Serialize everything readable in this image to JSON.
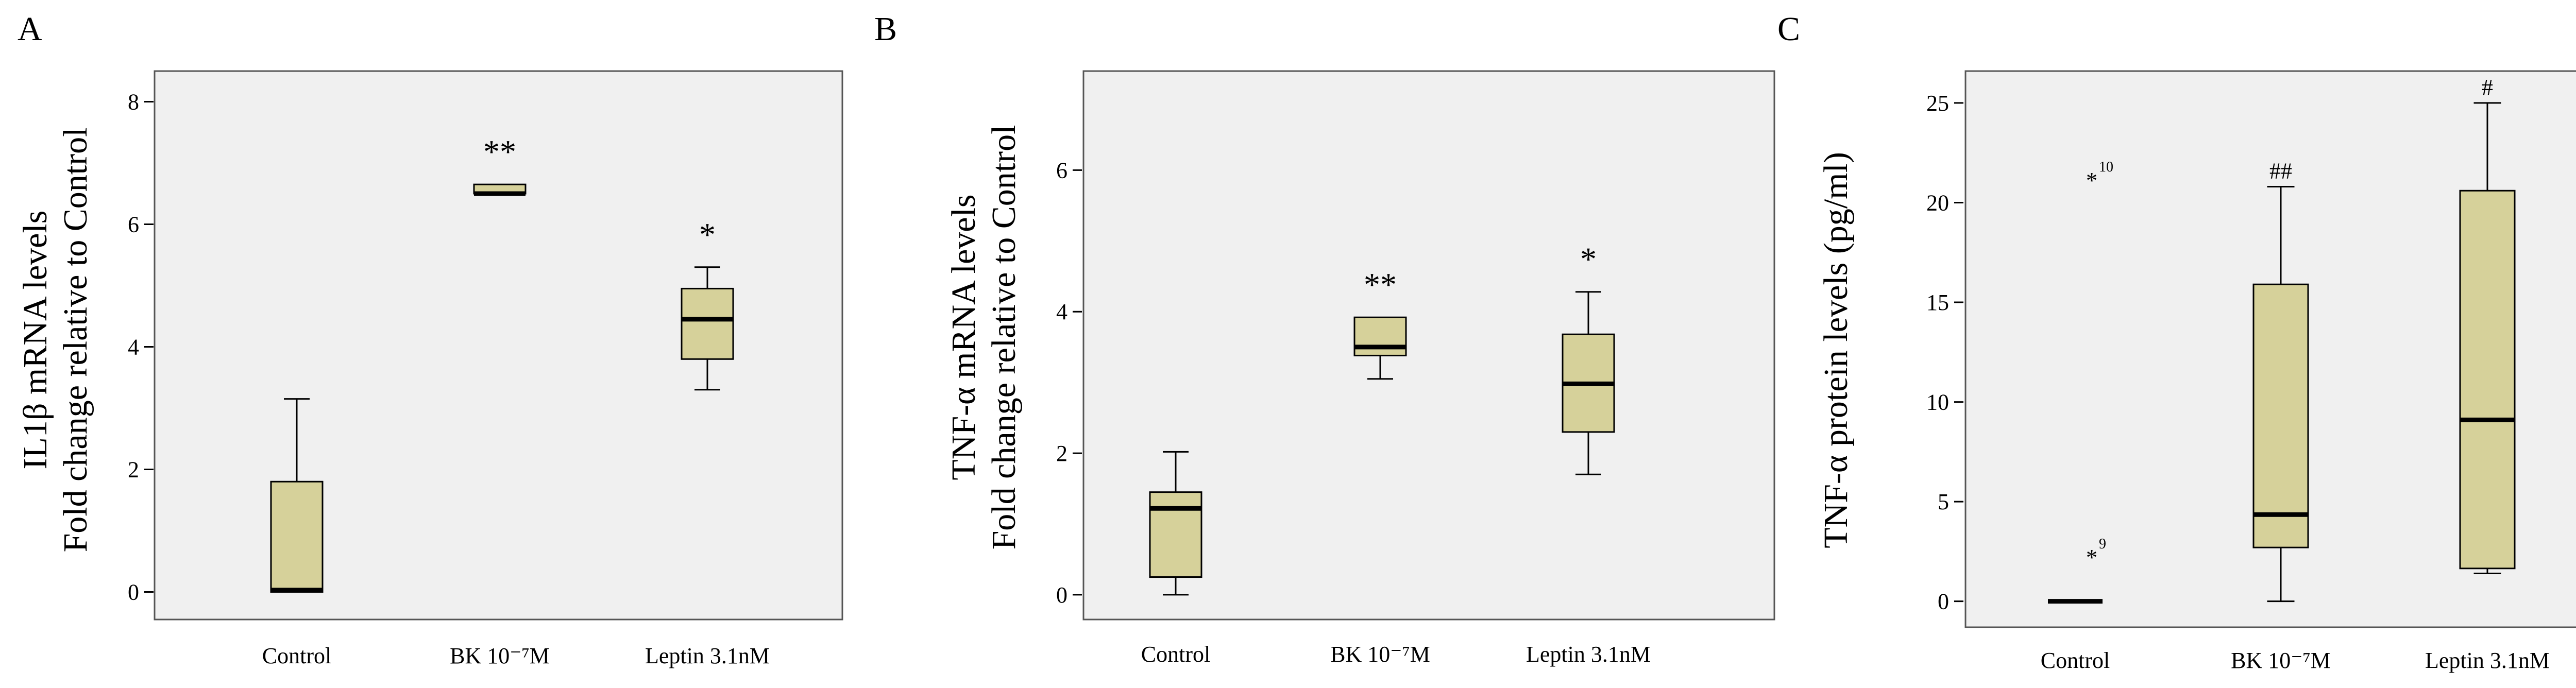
{
  "colors": {
    "box_fill": "#d6d19a",
    "background": "#f0f0f0"
  },
  "chart_data": [
    {
      "panel_label": "A",
      "type": "boxplot",
      "ylabel_lines": [
        "IL1β mRNA levels",
        "Fold change relative to Control"
      ],
      "ylim": [
        -0.45,
        8.5
      ],
      "yticks": [
        0,
        2,
        4,
        6,
        8
      ],
      "categories": [
        "Control",
        "BK 10⁻⁷M",
        "Leptin 3.1nM"
      ],
      "boxes": [
        {
          "category": "Control",
          "min": 0,
          "q1": 0,
          "median": 0.03,
          "q3": 1.8,
          "max": 3.15,
          "annotation": ""
        },
        {
          "category": "BK 10⁻⁷M",
          "min": 6.5,
          "q1": 6.5,
          "median": 6.5,
          "q3": 6.65,
          "max": 6.65,
          "annotation": "**"
        },
        {
          "category": "Leptin 3.1nM",
          "min": 3.3,
          "q1": 3.8,
          "median": 4.45,
          "q3": 4.95,
          "max": 5.3,
          "annotation": "*"
        }
      ],
      "outliers": []
    },
    {
      "panel_label": "B",
      "type": "boxplot",
      "ylabel_lines": [
        "TNF-α mRNA levels",
        "Fold change relative to Control"
      ],
      "ylim": [
        -0.35,
        7.4
      ],
      "yticks": [
        0,
        2,
        4,
        6
      ],
      "categories": [
        "Control",
        "BK 10⁻⁷M",
        "Leptin 3.1nM"
      ],
      "boxes": [
        {
          "category": "Control",
          "min": 0,
          "q1": 0.25,
          "median": 1.22,
          "q3": 1.45,
          "max": 2.02,
          "annotation": ""
        },
        {
          "category": "BK 10⁻⁷M",
          "min": 3.05,
          "q1": 3.38,
          "median": 3.5,
          "q3": 3.92,
          "max": 3.92,
          "annotation": "**"
        },
        {
          "category": "Leptin 3.1nM",
          "min": 1.7,
          "q1": 2.3,
          "median": 2.98,
          "q3": 3.68,
          "max": 4.28,
          "annotation": "*"
        }
      ],
      "outliers": []
    },
    {
      "panel_label": "C",
      "type": "boxplot",
      "ylabel_lines": [
        "TNF-α protein levels (pg/ml)"
      ],
      "ylim": [
        -1.3,
        26.6
      ],
      "yticks": [
        0,
        5,
        10,
        15,
        20,
        25
      ],
      "categories": [
        "Control",
        "BK 10⁻⁷M",
        "Leptin 3.1nM"
      ],
      "boxes": [
        {
          "category": "Control",
          "min": 0,
          "q1": 0,
          "median": 0,
          "q3": 0,
          "max": 0,
          "annotation": ""
        },
        {
          "category": "BK 10⁻⁷M",
          "min": 0,
          "q1": 2.7,
          "median": 4.35,
          "q3": 15.9,
          "max": 20.8,
          "annotation": "##"
        },
        {
          "category": "Leptin 3.1nM",
          "min": 1.4,
          "q1": 1.65,
          "median": 9.1,
          "q3": 20.6,
          "max": 25,
          "annotation": "#"
        }
      ],
      "outliers": [
        {
          "category": "Control",
          "value": 21.3,
          "label": "10"
        },
        {
          "category": "Control",
          "value": 2.4,
          "label": "9"
        }
      ]
    }
  ]
}
